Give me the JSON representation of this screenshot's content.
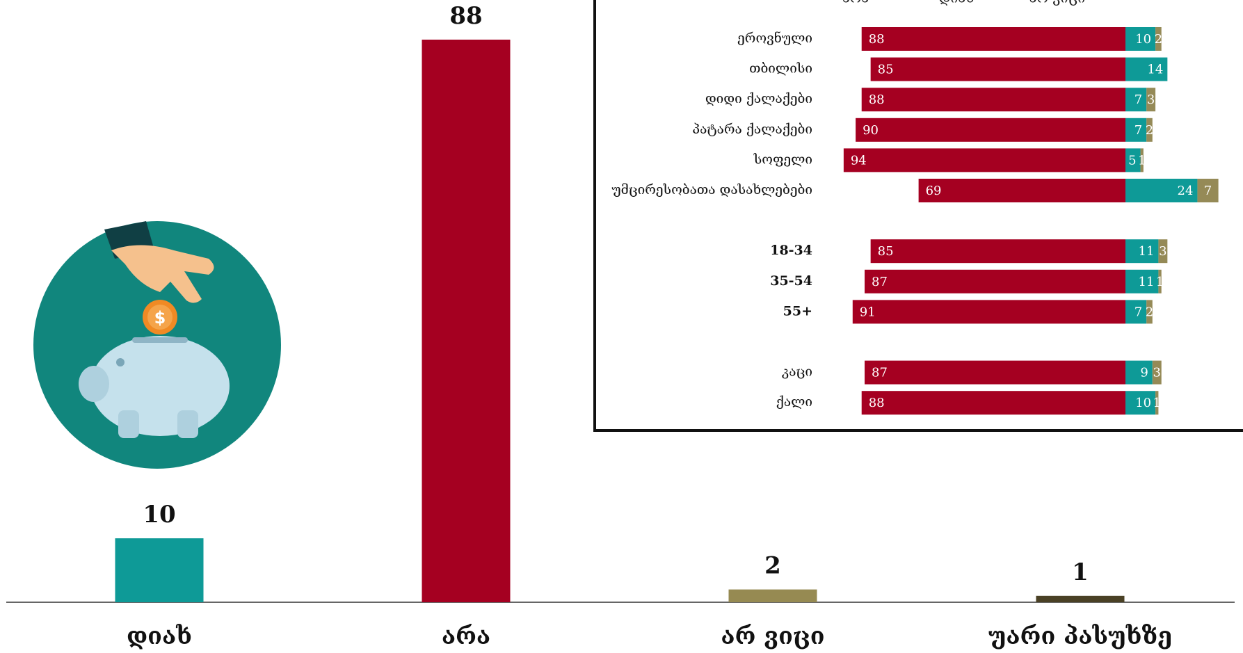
{
  "chart_data": [
    {
      "type": "bar",
      "categories": [
        "დიახ",
        "არა",
        "არ ვიცი",
        "უარი პასუხზე"
      ],
      "values": [
        10,
        88,
        2,
        1
      ],
      "colors": [
        "#0e9a97",
        "#a50021",
        "#968a52",
        "#4a4125"
      ]
    },
    {
      "type": "diverging",
      "categories": [
        "ეროვნული",
        "თბილისი",
        "დიდი ქალაქები",
        "პატარა ქალაქები",
        "სოფელი",
        "უმცირესობათა დასახლებები",
        null,
        "18-34",
        "35-54",
        "55+",
        null,
        "კაცი",
        "ქალი"
      ],
      "series": [
        {
          "name": "არა",
          "color": "#a50021",
          "values": [
            88,
            85,
            88,
            90,
            94,
            69,
            null,
            85,
            87,
            91,
            null,
            87,
            88
          ]
        },
        {
          "name": "დიახ",
          "color": "#0e9a97",
          "values": [
            10,
            14,
            7,
            7,
            5,
            24,
            null,
            11,
            11,
            7,
            null,
            9,
            10
          ]
        },
        {
          "name": "არ ვიცი",
          "color": "#958a57",
          "values": [
            2,
            null,
            3,
            2,
            1,
            7,
            null,
            3,
            1,
            2,
            null,
            3,
            1
          ]
        }
      ]
    }
  ]
}
